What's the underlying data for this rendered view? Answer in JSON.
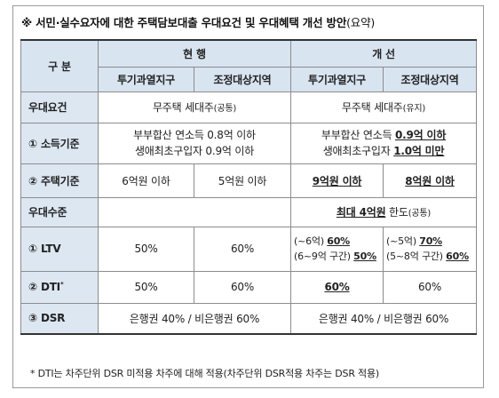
{
  "title": {
    "main": "※ 서민·실수요자에 대한 주택담보대출 우대요건 및 우대혜택 개선 방안",
    "suffix": "(요약)"
  },
  "header": {
    "category": "구 분",
    "current": "현 행",
    "improved": "개 선",
    "region_a": "투기과열지구",
    "region_b": "조정대상지역"
  },
  "rows": {
    "requirement": {
      "label": "우대요건",
      "current": "무주택 세대주",
      "current_note": "(공통)",
      "improved": "무주택 세대주",
      "improved_note": "(유지)"
    },
    "income": {
      "label": "① 소득기준",
      "current_line1": "부부합산 연소득 0.8억 이하",
      "current_line2": "생애최초구입자 0.9억 이하",
      "improved_line1_prefix": "부부합산 연소득 ",
      "improved_line1_value": "0.9억 이하",
      "improved_line2_prefix": "생애최초구입자 ",
      "improved_line2_value": "1.0억 미만"
    },
    "house": {
      "label": "② 주택기준",
      "current_a": "6억원 이하",
      "current_b": "5억원 이하",
      "improved_a": "9억원 이하",
      "improved_b": "8억원 이하"
    },
    "benefit": {
      "label": "우대수준",
      "improved": "최대 4억원",
      "improved_suffix": " 한도",
      "improved_note": "(공통)"
    },
    "ltv": {
      "label": "① LTV",
      "current_a": "50%",
      "current_b": "60%",
      "improved_a_line1_prefix": "(~6억) ",
      "improved_a_line1_value": "60%",
      "improved_a_line2_prefix": "(6~9억 구간) ",
      "improved_a_line2_value": "50%",
      "improved_b_line1_prefix": "(~5억) ",
      "improved_b_line1_value": "70%",
      "improved_b_line2_prefix": "(5~8억 구간) ",
      "improved_b_line2_value": "60%"
    },
    "dti": {
      "label": "② DTI",
      "label_sup": "*",
      "current_a": "50%",
      "current_b": "60%",
      "improved_a": "60%",
      "improved_b": "60%"
    },
    "dsr": {
      "label": "③ DSR",
      "current": "은행권 40% / 비은행권 60%",
      "improved": "은행권 40% / 비은행권 60%"
    }
  },
  "footnote": "* DTI는 차주단위 DSR 미적용 차주에 대해 적용(차주단위 DSR적용 차주는 DSR 적용)"
}
